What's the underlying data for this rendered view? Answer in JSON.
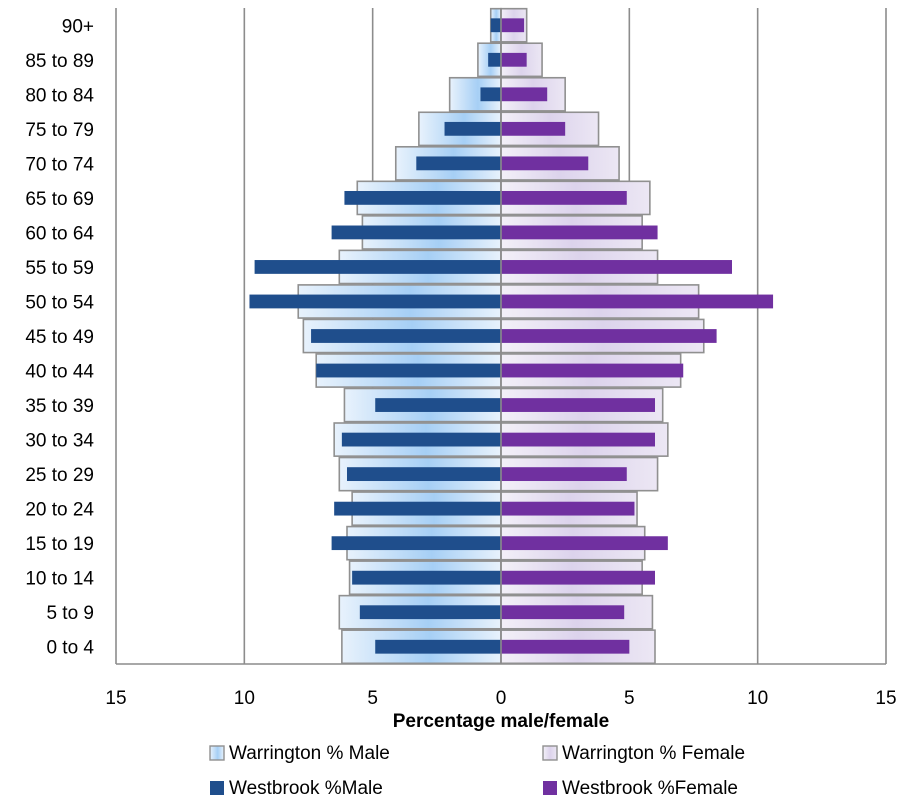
{
  "chart_data": {
    "type": "bar",
    "orientation": "horizontal",
    "subtype": "population-pyramid",
    "categories": [
      "0 to 4",
      "5 to 9",
      "10 to 14",
      "15 to 19",
      "20 to 24",
      "25 to 29",
      "30 to 34",
      "35 to 39",
      "40 to 44",
      "45 to 49",
      "50 to 54",
      "55 to 59",
      "60 to 64",
      "65 to 69",
      "70 to 74",
      "75 to 79",
      "80 to 84",
      "85 to 89",
      "90+"
    ],
    "series": [
      {
        "name": "Warrington % Male",
        "side": "left",
        "style": "wide",
        "color": "#9cc8f2",
        "values": [
          6.2,
          6.3,
          5.9,
          6.0,
          5.8,
          6.3,
          6.5,
          6.1,
          7.2,
          7.7,
          7.9,
          6.3,
          5.4,
          5.6,
          4.1,
          3.2,
          2.0,
          0.9,
          0.4
        ]
      },
      {
        "name": "Warrington % Female",
        "side": "right",
        "style": "wide",
        "color": "#d9d0ea",
        "values": [
          6.0,
          5.9,
          5.5,
          5.6,
          5.3,
          6.1,
          6.5,
          6.3,
          7.0,
          7.9,
          7.7,
          6.1,
          5.5,
          5.8,
          4.6,
          3.8,
          2.5,
          1.6,
          1.0
        ]
      },
      {
        "name": "Westbrook %Male",
        "side": "left",
        "style": "narrow",
        "color": "#1f4e8c",
        "values": [
          4.9,
          5.5,
          5.8,
          6.6,
          6.5,
          6.0,
          6.2,
          4.9,
          7.2,
          7.4,
          9.8,
          9.6,
          6.6,
          6.1,
          3.3,
          2.2,
          0.8,
          0.5,
          0.4
        ]
      },
      {
        "name": "Westbrook %Female",
        "side": "right",
        "style": "narrow",
        "color": "#7030a0",
        "values": [
          5.0,
          4.8,
          6.0,
          6.5,
          5.2,
          4.9,
          6.0,
          6.0,
          7.1,
          8.4,
          10.6,
          9.0,
          6.1,
          4.9,
          3.4,
          2.5,
          1.8,
          1.0,
          0.9
        ]
      }
    ],
    "xlabel": "Percentage male/female",
    "xticks": [
      15,
      10,
      5,
      0,
      5,
      10,
      15
    ],
    "xlim": [
      -15,
      15
    ],
    "grid": "vertical",
    "legend_position": "bottom"
  }
}
